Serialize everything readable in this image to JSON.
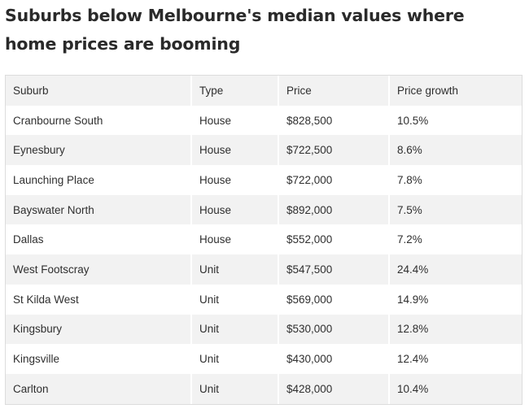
{
  "title": "Suburbs below Melbourne's median values where home prices are booming",
  "table": {
    "headers": [
      "Suburb",
      "Type",
      "Price",
      "Price growth"
    ],
    "rows": [
      [
        "Cranbourne South",
        "House",
        "$828,500",
        "10.5%"
      ],
      [
        "Eynesbury",
        "House",
        "$722,500",
        "8.6%"
      ],
      [
        "Launching Place",
        "House",
        "$722,000",
        "7.8%"
      ],
      [
        "Bayswater North",
        "House",
        "$892,000",
        "7.5%"
      ],
      [
        "Dallas",
        "House",
        "$552,000",
        "7.2%"
      ],
      [
        "West Footscray",
        "Unit",
        "$547,500",
        "24.4%"
      ],
      [
        "St Kilda West",
        "Unit",
        "$569,000",
        "14.9%"
      ],
      [
        "Kingsbury",
        "Unit",
        "$530,000",
        "12.8%"
      ],
      [
        "Kingsville",
        "Unit",
        "$430,000",
        "12.4%"
      ],
      [
        "Carlton",
        "Unit",
        "$428,000",
        "10.4%"
      ]
    ]
  }
}
